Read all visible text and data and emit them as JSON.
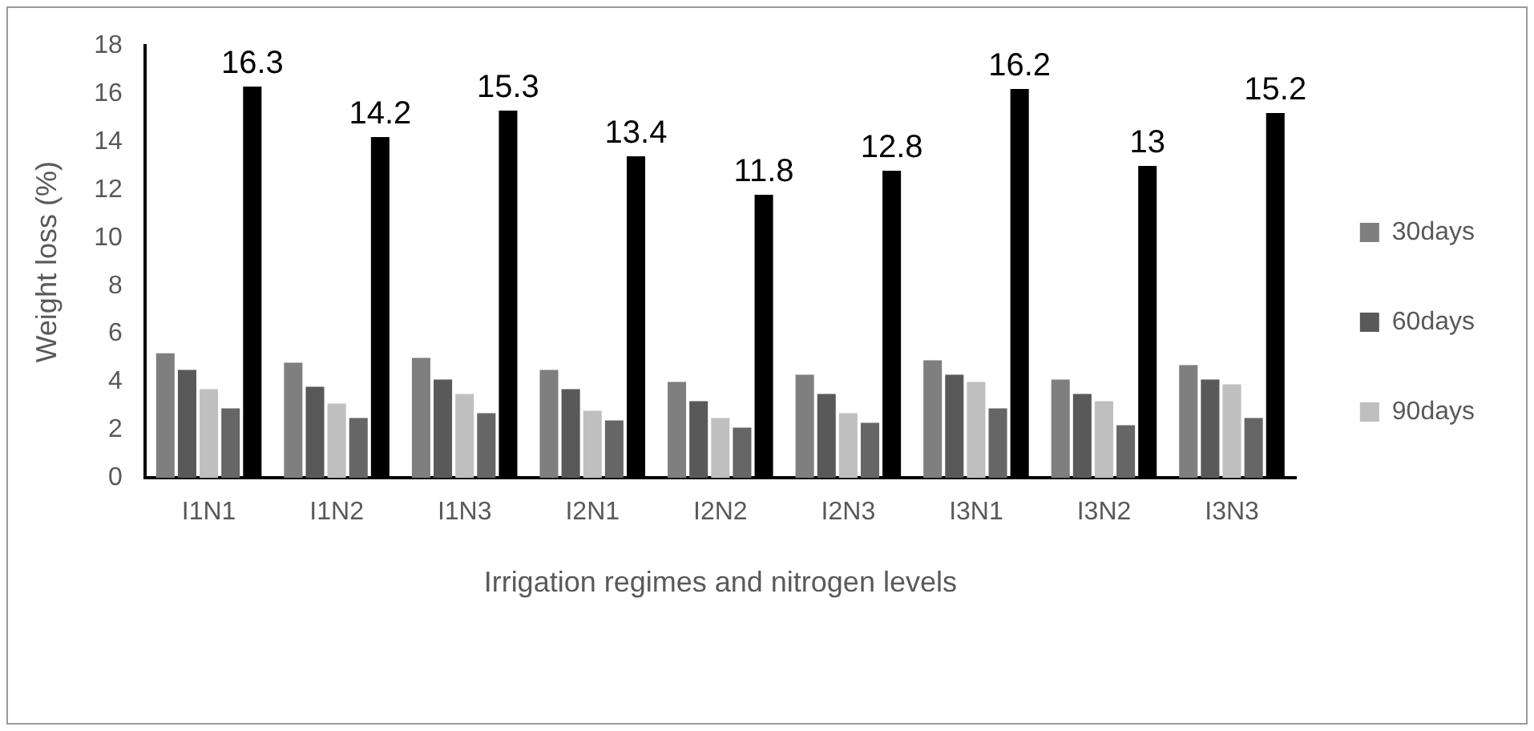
{
  "chart_data": {
    "type": "bar",
    "xlabel": "Irrigation regimes and nitrogen levels",
    "ylabel": "Weight loss (%)",
    "categories": [
      "I1N1",
      "I1N2",
      "I1N3",
      "I2N1",
      "I2N2",
      "I2N3",
      "I3N1",
      "I3N2",
      "I3N3"
    ],
    "series": [
      {
        "name": "30days",
        "color": "#7f7f7f",
        "values": [
          5.2,
          4.8,
          5.0,
          4.5,
          4.0,
          4.3,
          4.9,
          4.1,
          4.7
        ]
      },
      {
        "name": "60days",
        "color": "#595959",
        "values": [
          4.5,
          3.8,
          4.1,
          3.7,
          3.2,
          3.5,
          4.3,
          3.5,
          4.1
        ]
      },
      {
        "name": "90days",
        "color": "#bfbfbf",
        "values": [
          3.7,
          3.1,
          3.5,
          2.8,
          2.5,
          2.7,
          4.0,
          3.2,
          3.9
        ]
      },
      {
        "color": "#666666",
        "values": [
          2.9,
          2.5,
          2.7,
          2.4,
          2.1,
          2.3,
          2.9,
          2.2,
          2.5
        ]
      },
      {
        "color": "#000000",
        "values": [
          16.3,
          14.2,
          15.3,
          13.4,
          11.8,
          12.8,
          16.2,
          13,
          15.2
        ],
        "value_labels": [
          "16.3",
          "14.2",
          "15.3",
          "13.4",
          "11.8",
          "12.8",
          "16.2",
          "13",
          "15.2"
        ]
      }
    ],
    "ylim": [
      0,
      18
    ],
    "yticks": [
      0,
      2,
      4,
      6,
      8,
      10,
      12,
      14,
      16,
      18
    ],
    "grid": false,
    "legend": "right"
  }
}
